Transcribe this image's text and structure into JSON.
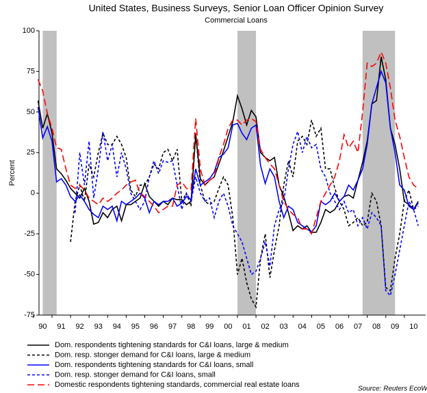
{
  "chart_data": {
    "type": "line",
    "title": "United States, Business Surveys, Senior Loan Officer Opinion Survey",
    "subtitle": "Commercial Loans",
    "y_label": "Percent",
    "source": "Source: Reuters EcoWin",
    "xlim": [
      1990.3,
      2011.15
    ],
    "ylim": [
      -75,
      100
    ],
    "yticks": [
      100,
      75,
      50,
      25,
      0,
      -25,
      -50,
      -75
    ],
    "xticks": [
      {
        "value": 1990.5,
        "label": "90"
      },
      {
        "value": 1991.5,
        "label": "91"
      },
      {
        "value": 1992.5,
        "label": "92"
      },
      {
        "value": 1993.5,
        "label": "93"
      },
      {
        "value": 1994.5,
        "label": "94"
      },
      {
        "value": 1995.5,
        "label": "95"
      },
      {
        "value": 1996.5,
        "label": "96"
      },
      {
        "value": 1997.5,
        "label": "97"
      },
      {
        "value": 1998.5,
        "label": "98"
      },
      {
        "value": 1999.5,
        "label": "99"
      },
      {
        "value": 2000.5,
        "label": "00"
      },
      {
        "value": 2001.5,
        "label": "01"
      },
      {
        "value": 2002.5,
        "label": "02"
      },
      {
        "value": 2003.5,
        "label": "03"
      },
      {
        "value": 2004.5,
        "label": "04"
      },
      {
        "value": 2005.5,
        "label": "05"
      },
      {
        "value": 2006.5,
        "label": "06"
      },
      {
        "value": 2007.5,
        "label": "07"
      },
      {
        "value": 2008.5,
        "label": "08"
      },
      {
        "value": 2009.5,
        "label": "09"
      },
      {
        "value": 2010.5,
        "label": "10"
      }
    ],
    "shaded_periods": [
      [
        1990.5,
        1991.25
      ],
      [
        2001.0,
        2002.0
      ],
      [
        2007.75,
        2009.5
      ]
    ],
    "shade_color": "#c0c0c0",
    "x": [
      1990.25,
      1990.5,
      1990.75,
      1991.0,
      1991.25,
      1991.5,
      1991.75,
      1992.0,
      1992.25,
      1992.5,
      1992.75,
      1993.0,
      1993.25,
      1993.5,
      1993.75,
      1994.0,
      1994.25,
      1994.5,
      1994.75,
      1995.0,
      1995.25,
      1995.5,
      1995.75,
      1996.0,
      1996.25,
      1996.5,
      1996.75,
      1997.0,
      1997.25,
      1997.5,
      1997.75,
      1998.0,
      1998.25,
      1998.5,
      1998.75,
      1999.0,
      1999.25,
      1999.5,
      1999.75,
      2000.0,
      2000.25,
      2000.5,
      2000.75,
      2001.0,
      2001.25,
      2001.5,
      2001.75,
      2002.0,
      2002.25,
      2002.5,
      2002.75,
      2003.0,
      2003.25,
      2003.5,
      2003.75,
      2004.0,
      2004.25,
      2004.5,
      2004.75,
      2005.0,
      2005.25,
      2005.5,
      2005.75,
      2006.0,
      2006.25,
      2006.5,
      2006.75,
      2007.0,
      2007.25,
      2007.5,
      2007.75,
      2008.0,
      2008.25,
      2008.5,
      2008.75,
      2009.0,
      2009.25,
      2009.5,
      2009.75,
      2010.0,
      2010.25,
      2010.5,
      2010.75
    ],
    "series": [
      {
        "name": "Dom. respondents tightening standards for C&I loans, large & medium",
        "color": "#000000",
        "dash": "none",
        "values": [
          57,
          40,
          49,
          37,
          15,
          12,
          8,
          3,
          0,
          -3,
          3,
          -5,
          -19,
          -18,
          -12,
          -15,
          -10,
          -8,
          -17,
          -7,
          -7,
          -5,
          -3,
          6,
          -2,
          -5,
          -8,
          -5,
          -7,
          -3,
          -4,
          -4,
          -7,
          -5,
          36,
          9,
          5,
          8,
          10,
          18,
          26,
          35,
          44,
          60,
          52,
          42,
          51,
          47,
          25,
          22,
          20,
          22,
          5,
          -2,
          -12,
          -23,
          -20,
          -22,
          -20,
          -24,
          -24,
          -18,
          -10,
          -12,
          -10,
          -5,
          -2,
          -1,
          -3,
          8,
          19,
          32,
          55,
          57,
          84,
          70,
          40,
          30,
          15,
          -5,
          -7,
          -10,
          -5
        ]
      },
      {
        "name": "Dom. resp. stonger demand for C&I loans, large & medium",
        "color": "#000000",
        "dash": "4,3",
        "values": [
          null,
          null,
          null,
          null,
          null,
          null,
          null,
          -30,
          -5,
          5,
          -5,
          18,
          10,
          25,
          37,
          30,
          30,
          35,
          30,
          22,
          2,
          -2,
          5,
          5,
          10,
          18,
          15,
          25,
          27,
          20,
          27,
          -5,
          0,
          -8,
          37,
          5,
          -5,
          -7,
          -5,
          3,
          10,
          5,
          -15,
          -50,
          -40,
          -55,
          -65,
          -70,
          -40,
          -25,
          -52,
          -35,
          -20,
          5,
          20,
          10,
          32,
          35,
          30,
          45,
          35,
          40,
          15,
          15,
          3,
          -5,
          -10,
          -20,
          -18,
          -15,
          -20,
          -18,
          0,
          -5,
          -20,
          -58,
          -60,
          -40,
          -25,
          -5,
          2,
          -10,
          -8
        ]
      },
      {
        "name": "Dom. respondents tightening standards for C&I loans, small",
        "color": "#0000ff",
        "dash": "none",
        "values": [
          53,
          34,
          41,
          32,
          7,
          9,
          5,
          -2,
          -5,
          -1,
          -5,
          -10,
          -13,
          -15,
          -8,
          -10,
          -8,
          -17,
          -5,
          -7,
          -5,
          -3,
          0,
          -3,
          -12,
          -5,
          -7,
          -5,
          -5,
          -3,
          -8,
          -6,
          -2,
          -4,
          15,
          5,
          7,
          9,
          13,
          22,
          24,
          28,
          42,
          43,
          37,
          33,
          40,
          42,
          17,
          6,
          15,
          10,
          -5,
          -15,
          -8,
          -10,
          -18,
          -20,
          -22,
          -24,
          -20,
          -5,
          -7,
          -5,
          0,
          -5,
          -2,
          5,
          2,
          8,
          15,
          30,
          55,
          65,
          75,
          68,
          40,
          25,
          5,
          2,
          -8,
          -10,
          -6
        ]
      },
      {
        "name": "Dom. resp. stonger demand for C&I loans, small",
        "color": "#0000ff",
        "dash": "4,3",
        "values": [
          null,
          null,
          null,
          null,
          null,
          null,
          null,
          null,
          -12,
          25,
          5,
          32,
          -3,
          15,
          38,
          20,
          30,
          10,
          25,
          15,
          0,
          -5,
          -10,
          -5,
          10,
          20,
          12,
          20,
          19,
          20,
          5,
          -10,
          0,
          -5,
          10,
          0,
          -5,
          -3,
          -15,
          -5,
          0,
          -8,
          -20,
          -25,
          -30,
          -40,
          -50,
          -48,
          -40,
          -30,
          -45,
          -20,
          -10,
          -5,
          15,
          30,
          38,
          25,
          35,
          28,
          30,
          15,
          10,
          0,
          -5,
          -10,
          -5,
          -12,
          -10,
          -20,
          -15,
          -22,
          -12,
          -15,
          -20,
          -60,
          -63,
          -50,
          -35,
          -20,
          -5,
          -10,
          -20
        ]
      },
      {
        "name": "Domestic respondents tightening standards, commercial real estate loans",
        "color": "#ff0000",
        "dash": "10,5",
        "values": [
          70,
          63,
          49,
          40,
          28,
          27,
          15,
          5,
          3,
          5,
          2,
          -3,
          -5,
          -7,
          -3,
          -5,
          -3,
          0,
          2,
          5,
          7,
          8,
          0,
          -2,
          -5,
          -8,
          -12,
          -10,
          -8,
          -8,
          5,
          7,
          3,
          2,
          46,
          15,
          5,
          8,
          10,
          22,
          30,
          40,
          45,
          45,
          42,
          45,
          46,
          44,
          27,
          22,
          18,
          15,
          5,
          -5,
          -10,
          -13,
          -15,
          -22,
          -22,
          -25,
          -15,
          -5,
          0,
          5,
          10,
          20,
          36,
          28,
          32,
          25,
          50,
          80,
          78,
          80,
          87,
          80,
          65,
          45,
          35,
          22,
          10,
          5,
          3
        ]
      }
    ]
  }
}
